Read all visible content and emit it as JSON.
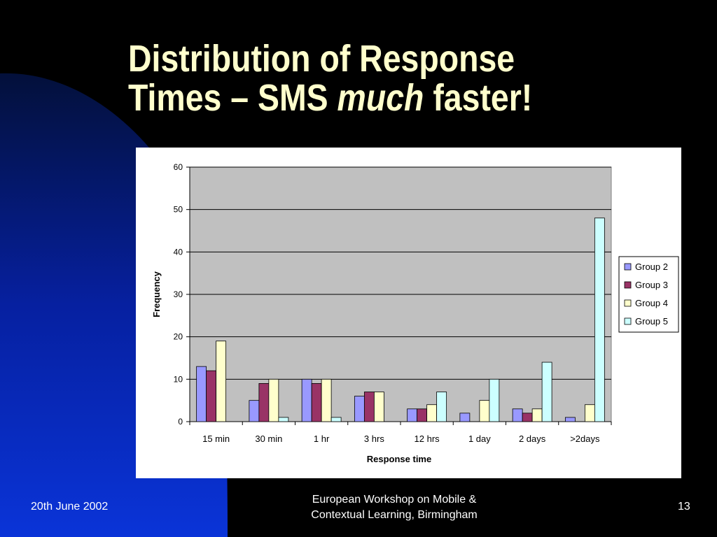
{
  "slide": {
    "title_line1": "Distribution of Response",
    "title_line2_pre": "Times – SMS ",
    "title_line2_em": "much",
    "title_line2_post": " faster!",
    "footer_date": "20th June 2002",
    "footer_center_line1": "European Workshop on Mobile &",
    "footer_center_line2": "Contextual Learning, Birmingham",
    "footer_page": "13"
  },
  "colors": {
    "background": "#000000",
    "accent_blue": "#0A2FD0",
    "title": "#FFFFCC",
    "plot_area": "#C0C0C0"
  },
  "chart_data": {
    "type": "bar",
    "title": "",
    "xlabel": "Response time",
    "ylabel": "Frequency",
    "ylim": [
      0,
      60
    ],
    "yticks": [
      0,
      10,
      20,
      30,
      40,
      50,
      60
    ],
    "grid": true,
    "legend": "right",
    "categories": [
      "15 min",
      "30 min",
      "1 hr",
      "3 hrs",
      "12 hrs",
      "1 day",
      "2 days",
      ">2days"
    ],
    "series": [
      {
        "name": "Group 2",
        "color": "#9999FF",
        "values": [
          13,
          5,
          10,
          6,
          3,
          2,
          3,
          1
        ]
      },
      {
        "name": "Group 3",
        "color": "#993366",
        "values": [
          12,
          9,
          9,
          7,
          3,
          0,
          2,
          0
        ]
      },
      {
        "name": "Group 4",
        "color": "#FFFFCC",
        "values": [
          19,
          10,
          10,
          7,
          4,
          5,
          3,
          4
        ]
      },
      {
        "name": "Group 5",
        "color": "#CCFFFF",
        "values": [
          0,
          1,
          1,
          0,
          7,
          10,
          14,
          48
        ]
      }
    ]
  }
}
